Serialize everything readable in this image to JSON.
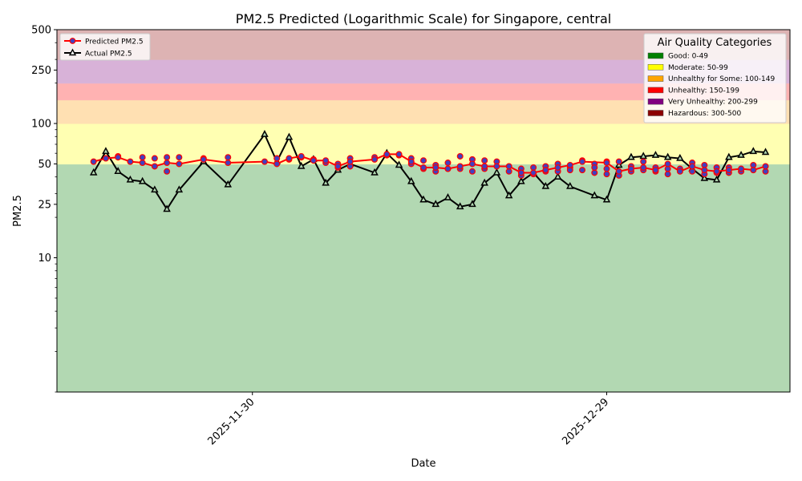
{
  "chart_data": {
    "type": "line",
    "title": "PM2.5 Predicted (Logarithmic Scale) for Singapore, central",
    "xlabel": "Date",
    "ylabel": "PM2.5",
    "y_scale": "log",
    "ylim": [
      1,
      500
    ],
    "y_ticks": [
      {
        "value": 10,
        "label": "10"
      },
      {
        "value": 25,
        "label": "25"
      },
      {
        "value": 50,
        "label": "50"
      },
      {
        "value": 100,
        "label": "100"
      },
      {
        "value": 250,
        "label": "250"
      },
      {
        "value": 500,
        "label": "500"
      }
    ],
    "x_range": [
      "2025-11-14",
      "2026-01-13"
    ],
    "x_ticks": [
      {
        "value": "2025-11-30",
        "label": "2025-11-30"
      },
      {
        "value": "2025-12-29",
        "label": "2025-12-29"
      }
    ],
    "bands": [
      {
        "from": 1,
        "to": 50,
        "color": "#b2d8b2"
      },
      {
        "from": 50,
        "to": 100,
        "color": "#ffffb2"
      },
      {
        "from": 100,
        "to": 150,
        "color": "#ffe0b2"
      },
      {
        "from": 150,
        "to": 200,
        "color": "#ffb2b2"
      },
      {
        "from": 200,
        "to": 300,
        "color": "#d8b2d8"
      },
      {
        "from": 300,
        "to": 500,
        "color": "#ddb3b3"
      }
    ],
    "legend_series": {
      "placement": "top-left",
      "items": [
        {
          "label": "Predicted PM2.5",
          "color": "#ff0000",
          "marker": "circle",
          "marker_color": "#4040c0"
        },
        {
          "label": "Actual PM2.5",
          "color": "#000000",
          "marker": "triangle"
        }
      ]
    },
    "legend_categories": {
      "title": "Air Quality Categories",
      "placement": "top-right",
      "items": [
        {
          "label": "Good: 0-49",
          "color": "#008000"
        },
        {
          "label": "Moderate: 50-99",
          "color": "#ffff00"
        },
        {
          "label": "Unhealthy for Some: 100-149",
          "color": "#ffa500"
        },
        {
          "label": "Unhealthy: 150-199",
          "color": "#ff0000"
        },
        {
          "label": "Very Unhealthy: 200-299",
          "color": "#800080"
        },
        {
          "label": "Hazardous: 300-500",
          "color": "#8b0000"
        }
      ]
    },
    "series": [
      {
        "name": "Predicted PM2.5",
        "color": "#ff0000",
        "marker_color": "#4040c0",
        "points": [
          [
            "2025-11-17",
            52
          ],
          [
            "2025-11-18",
            55
          ],
          [
            "2025-11-19",
            56
          ],
          [
            "2025-11-20",
            52
          ],
          [
            "2025-11-21",
            51
          ],
          [
            "2025-11-22",
            48
          ],
          [
            "2025-11-23",
            51
          ],
          [
            "2025-11-24",
            50
          ],
          [
            "2025-11-26",
            54
          ],
          [
            "2025-11-28",
            51
          ],
          [
            "2025-12-01",
            52
          ],
          [
            "2025-12-02",
            50
          ],
          [
            "2025-12-03",
            55
          ],
          [
            "2025-12-04",
            57
          ],
          [
            "2025-12-05",
            53
          ],
          [
            "2025-12-06",
            53
          ],
          [
            "2025-12-07",
            48
          ],
          [
            "2025-12-08",
            52
          ],
          [
            "2025-12-10",
            54
          ],
          [
            "2025-12-11",
            59
          ],
          [
            "2025-12-12",
            59
          ],
          [
            "2025-12-13",
            52
          ],
          [
            "2025-12-14",
            47
          ],
          [
            "2025-12-15",
            47
          ],
          [
            "2025-12-16",
            46
          ],
          [
            "2025-12-17",
            48
          ],
          [
            "2025-12-18",
            50
          ],
          [
            "2025-12-19",
            48
          ],
          [
            "2025-12-20",
            48
          ],
          [
            "2025-12-21",
            48
          ],
          [
            "2025-12-22",
            43
          ],
          [
            "2025-12-23",
            43
          ],
          [
            "2025-12-24",
            45
          ],
          [
            "2025-12-25",
            47
          ],
          [
            "2025-12-26",
            49
          ],
          [
            "2025-12-27",
            52
          ],
          [
            "2025-12-29",
            51
          ],
          [
            "2025-12-30",
            44
          ],
          [
            "2025-12-31",
            46
          ],
          [
            "2026-01-01",
            47
          ],
          [
            "2026-01-02",
            45
          ],
          [
            "2026-01-03",
            50
          ],
          [
            "2026-01-04",
            44
          ],
          [
            "2026-01-05",
            48
          ],
          [
            "2026-01-06",
            45
          ],
          [
            "2026-01-07",
            44
          ],
          [
            "2026-01-08",
            45
          ],
          [
            "2026-01-09",
            46
          ],
          [
            "2026-01-10",
            45
          ],
          [
            "2026-01-11",
            48
          ]
        ],
        "extra_markers": [
          [
            "2025-11-19",
            57
          ],
          [
            "2025-11-21",
            56
          ],
          [
            "2025-11-22",
            55
          ],
          [
            "2025-11-23",
            56
          ],
          [
            "2025-11-23",
            44
          ],
          [
            "2025-11-24",
            56
          ],
          [
            "2025-11-26",
            55
          ],
          [
            "2025-11-28",
            56
          ],
          [
            "2025-12-02",
            55
          ],
          [
            "2025-12-03",
            54
          ],
          [
            "2025-12-04",
            56
          ],
          [
            "2025-12-05",
            54
          ],
          [
            "2025-12-06",
            51
          ],
          [
            "2025-12-07",
            50
          ],
          [
            "2025-12-07",
            47
          ],
          [
            "2025-12-08",
            55
          ],
          [
            "2025-12-08",
            48
          ],
          [
            "2025-12-10",
            56
          ],
          [
            "2025-12-11",
            58
          ],
          [
            "2025-12-12",
            58
          ],
          [
            "2025-12-13",
            55
          ],
          [
            "2025-12-13",
            50
          ],
          [
            "2025-12-14",
            53
          ],
          [
            "2025-12-14",
            46
          ],
          [
            "2025-12-15",
            49
          ],
          [
            "2025-12-15",
            44
          ],
          [
            "2025-12-16",
            51
          ],
          [
            "2025-12-16",
            46
          ],
          [
            "2025-12-17",
            57
          ],
          [
            "2025-12-17",
            46
          ],
          [
            "2025-12-18",
            54
          ],
          [
            "2025-12-18",
            44
          ],
          [
            "2025-12-19",
            53
          ],
          [
            "2025-12-19",
            46
          ],
          [
            "2025-12-20",
            52
          ],
          [
            "2025-12-21",
            44
          ],
          [
            "2025-12-22",
            46
          ],
          [
            "2025-12-22",
            41
          ],
          [
            "2025-12-23",
            47
          ],
          [
            "2025-12-23",
            42
          ],
          [
            "2025-12-24",
            48
          ],
          [
            "2025-12-24",
            44
          ],
          [
            "2025-12-25",
            50
          ],
          [
            "2025-12-25",
            44
          ],
          [
            "2025-12-26",
            47
          ],
          [
            "2025-12-26",
            45
          ],
          [
            "2025-12-27",
            53
          ],
          [
            "2025-12-27",
            45
          ],
          [
            "2025-12-28",
            50
          ],
          [
            "2025-12-28",
            43
          ],
          [
            "2025-12-28",
            47
          ],
          [
            "2025-12-29",
            52
          ],
          [
            "2025-12-29",
            42
          ],
          [
            "2025-12-29",
            46
          ],
          [
            "2025-12-30",
            52
          ],
          [
            "2025-12-30",
            41
          ],
          [
            "2025-12-31",
            44
          ],
          [
            "2025-12-31",
            48
          ],
          [
            "2026-01-01",
            52
          ],
          [
            "2026-01-01",
            45
          ],
          [
            "2026-01-02",
            47
          ],
          [
            "2026-01-02",
            44
          ],
          [
            "2026-01-03",
            46
          ],
          [
            "2026-01-03",
            42
          ],
          [
            "2026-01-04",
            46
          ],
          [
            "2026-01-05",
            51
          ],
          [
            "2026-01-05",
            44
          ],
          [
            "2026-01-06",
            49
          ],
          [
            "2026-01-06",
            42
          ],
          [
            "2026-01-07",
            47
          ],
          [
            "2026-01-07",
            43
          ],
          [
            "2026-01-08",
            47
          ],
          [
            "2026-01-08",
            43
          ],
          [
            "2026-01-09",
            44
          ],
          [
            "2026-01-10",
            49
          ],
          [
            "2026-01-11",
            44
          ]
        ]
      },
      {
        "name": "Actual PM2.5",
        "color": "#000000",
        "points": [
          [
            "2025-11-17",
            43
          ],
          [
            "2025-11-18",
            62
          ],
          [
            "2025-11-19",
            44
          ],
          [
            "2025-11-20",
            38
          ],
          [
            "2025-11-21",
            37
          ],
          [
            "2025-11-22",
            32
          ],
          [
            "2025-11-23",
            23
          ],
          [
            "2025-11-24",
            32
          ],
          [
            "2025-11-26",
            52
          ],
          [
            "2025-11-28",
            35
          ],
          [
            "2025-12-01",
            83
          ],
          [
            "2025-12-02",
            52
          ],
          [
            "2025-12-03",
            79
          ],
          [
            "2025-12-04",
            48
          ],
          [
            "2025-12-05",
            54
          ],
          [
            "2025-12-06",
            36
          ],
          [
            "2025-12-07",
            45
          ],
          [
            "2025-12-08",
            50
          ],
          [
            "2025-12-10",
            43
          ],
          [
            "2025-12-11",
            60
          ],
          [
            "2025-12-12",
            49
          ],
          [
            "2025-12-13",
            37
          ],
          [
            "2025-12-14",
            27
          ],
          [
            "2025-12-15",
            25
          ],
          [
            "2025-12-16",
            28
          ],
          [
            "2025-12-17",
            24
          ],
          [
            "2025-12-18",
            25
          ],
          [
            "2025-12-19",
            36
          ],
          [
            "2025-12-20",
            43
          ],
          [
            "2025-12-21",
            29
          ],
          [
            "2025-12-22",
            37
          ],
          [
            "2025-12-23",
            43
          ],
          [
            "2025-12-24",
            34
          ],
          [
            "2025-12-25",
            40
          ],
          [
            "2025-12-26",
            34
          ],
          [
            "2025-12-28",
            29
          ],
          [
            "2025-12-29",
            27
          ],
          [
            "2025-12-30",
            49
          ],
          [
            "2025-12-31",
            56
          ],
          [
            "2026-01-01",
            57
          ],
          [
            "2026-01-02",
            58
          ],
          [
            "2026-01-03",
            56
          ],
          [
            "2026-01-04",
            55
          ],
          [
            "2026-01-05",
            46
          ],
          [
            "2026-01-06",
            39
          ],
          [
            "2026-01-07",
            38
          ],
          [
            "2026-01-08",
            56
          ],
          [
            "2026-01-09",
            58
          ],
          [
            "2026-01-10",
            62
          ],
          [
            "2026-01-11",
            61
          ]
        ]
      }
    ]
  }
}
